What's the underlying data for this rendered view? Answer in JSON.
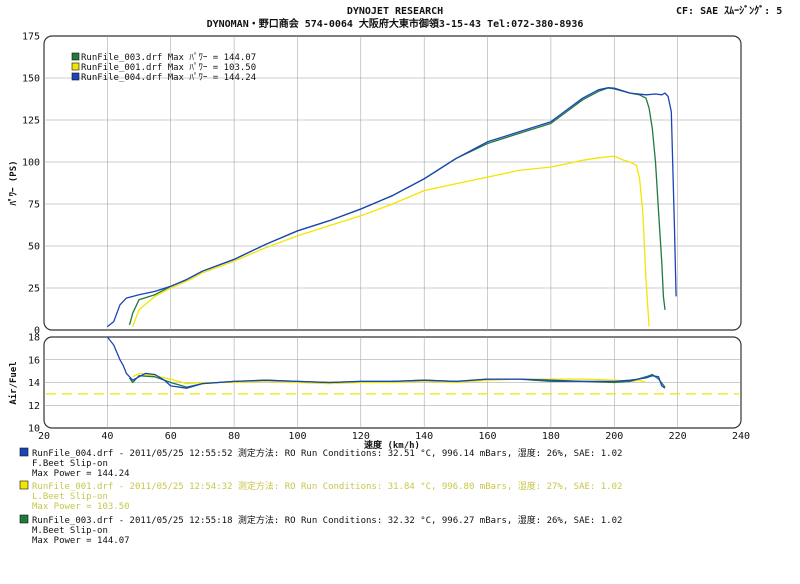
{
  "header": {
    "title": "DYNOJET  RESEARCH",
    "subtitle": "DYNOMAN・野口商会 574-0064 大阪府大東市御領3-15-43 Tel:072-380-8936",
    "settings": "CF: SAE  ｽﾑｰｼﾞﾝｸﾞ: 5"
  },
  "colors": {
    "run004": "#1a44b8",
    "run001": "#f2e600",
    "run003": "#1f7a3c",
    "afr_reference": "#f2e600"
  },
  "chart_data": [
    {
      "type": "line",
      "name": "power",
      "ylabel": "ﾊﾟﾜｰ (PS)",
      "xlim": [
        20,
        240
      ],
      "ylim": [
        0,
        175
      ],
      "yticks": [
        0,
        25,
        50,
        75,
        100,
        125,
        150,
        175
      ],
      "legend": [
        "RunFile_003.drf Max ﾊﾟﾜｰ = 144.07",
        "RunFile_001.drf Max ﾊﾟﾜｰ = 103.50",
        "RunFile_004.drf Max ﾊﾟﾜｰ = 144.24"
      ],
      "legend_position": "top-left",
      "series": [
        {
          "key": "run004",
          "x": [
            40,
            42,
            44,
            46,
            50,
            55,
            60,
            65,
            70,
            80,
            90,
            100,
            110,
            120,
            130,
            140,
            150,
            160,
            170,
            180,
            185,
            190,
            195,
            198,
            200,
            205,
            210,
            213,
            215,
            216,
            217,
            218,
            219,
            219.5
          ],
          "y": [
            2,
            5,
            15,
            19,
            21,
            23,
            26,
            30,
            35,
            42,
            51,
            59,
            65,
            72,
            80,
            90,
            102,
            112,
            118,
            124,
            131,
            138,
            143,
            144.24,
            144,
            141,
            140,
            140.5,
            140,
            141,
            139,
            130,
            60,
            20
          ]
        },
        {
          "key": "run003",
          "x": [
            47,
            48,
            50,
            55,
            60,
            65,
            70,
            80,
            90,
            100,
            110,
            120,
            130,
            140,
            150,
            160,
            170,
            180,
            185,
            190,
            195,
            198,
            200,
            205,
            208,
            210,
            211,
            212,
            213,
            214,
            215,
            215.5,
            216
          ],
          "y": [
            3,
            10,
            18,
            21,
            26,
            30,
            35,
            42,
            51,
            59,
            65,
            72,
            80,
            90,
            102,
            111,
            117,
            123,
            130,
            137,
            142,
            144.07,
            143.5,
            141,
            140,
            138,
            132,
            120,
            100,
            70,
            40,
            20,
            12
          ]
        },
        {
          "key": "run001",
          "x": [
            48,
            50,
            55,
            60,
            65,
            70,
            80,
            90,
            100,
            110,
            120,
            130,
            140,
            150,
            160,
            170,
            180,
            185,
            190,
            195,
            200,
            203,
            205,
            207,
            208,
            209,
            210,
            211
          ],
          "y": [
            2,
            12,
            20,
            25,
            29,
            34,
            41,
            49,
            56,
            62,
            68,
            75,
            83,
            87,
            91,
            95,
            97,
            99,
            101,
            102.5,
            103.5,
            101,
            100,
            98,
            90,
            70,
            30,
            2
          ]
        }
      ]
    },
    {
      "type": "line",
      "name": "air_fuel",
      "xlabel": "速度 (km/h)",
      "ylabel": "Air/Fuel",
      "xlim": [
        20,
        240
      ],
      "ylim": [
        10,
        18
      ],
      "xticks": [
        20,
        40,
        60,
        80,
        100,
        120,
        140,
        160,
        180,
        200,
        220,
        240
      ],
      "yticks": [
        10,
        12,
        14,
        16,
        18
      ],
      "reference_line": 13,
      "series": [
        {
          "key": "run004",
          "x": [
            40,
            42,
            44,
            45,
            46,
            48,
            50,
            52,
            55,
            58,
            60,
            65,
            70,
            80,
            90,
            100,
            110,
            120,
            130,
            140,
            150,
            160,
            170,
            180,
            190,
            200,
            205,
            210,
            212,
            214,
            215,
            216
          ],
          "y": [
            18,
            17.3,
            16,
            15.5,
            14.8,
            14.2,
            14.5,
            14.8,
            14.7,
            14.2,
            13.7,
            13.5,
            13.9,
            14.1,
            14.2,
            14.1,
            14.0,
            14.1,
            14.1,
            14.2,
            14.1,
            14.3,
            14.3,
            14.2,
            14.1,
            14.1,
            14.2,
            14.4,
            14.6,
            14.5,
            13.7,
            13.5
          ]
        },
        {
          "key": "run003",
          "x": [
            47,
            48,
            50,
            55,
            60,
            65,
            70,
            80,
            90,
            100,
            110,
            120,
            130,
            140,
            150,
            160,
            170,
            180,
            190,
            200,
            205,
            210,
            212,
            214,
            216
          ],
          "y": [
            14.4,
            14.0,
            14.6,
            14.5,
            14.0,
            13.6,
            13.9,
            14.1,
            14.2,
            14.1,
            14.0,
            14.1,
            14.1,
            14.2,
            14.1,
            14.3,
            14.3,
            14.1,
            14.1,
            14.0,
            14.1,
            14.5,
            14.7,
            14.3,
            13.6
          ]
        },
        {
          "key": "run001",
          "x": [
            48,
            50,
            55,
            60,
            65,
            70,
            80,
            90,
            100,
            110,
            120,
            130,
            140,
            150,
            160,
            170,
            180,
            190,
            200,
            205,
            208,
            210
          ],
          "y": [
            14.5,
            14.8,
            14.6,
            14.3,
            13.9,
            14.0,
            14.0,
            14.1,
            14.0,
            13.9,
            14.0,
            14.0,
            14.1,
            14.0,
            14.2,
            14.3,
            14.3,
            14.3,
            14.2,
            14.1,
            14.2,
            14.0
          ]
        }
      ]
    }
  ],
  "footer": [
    {
      "key": "run004",
      "line1": "RunFile_004.drf - 2011/05/25 12:55:52  測定方法: RO  Run Conditions: 32.51 °C, 996.14 mBars,  湿度: 26%, SAE: 1.02",
      "line2": "F.Beet Slip-on",
      "line3": "Max Power = 144.24"
    },
    {
      "key": "run001",
      "line1": "RunFile_001.drf - 2011/05/25 12:54:32  測定方法: RO  Run Conditions: 31.84 °C, 996.80 mBars,  湿度: 27%, SAE: 1.02",
      "line2": "L.Beet Slip-on",
      "line3": "Max Power = 103.50"
    },
    {
      "key": "run003",
      "line1": "RunFile_003.drf - 2011/05/25 12:55:18  測定方法: RO  Run Conditions: 32.32 °C, 996.27 mBars,  湿度: 26%, SAE: 1.02",
      "line2": "M.Beet Slip-on",
      "line3": "Max Power = 144.07"
    }
  ]
}
